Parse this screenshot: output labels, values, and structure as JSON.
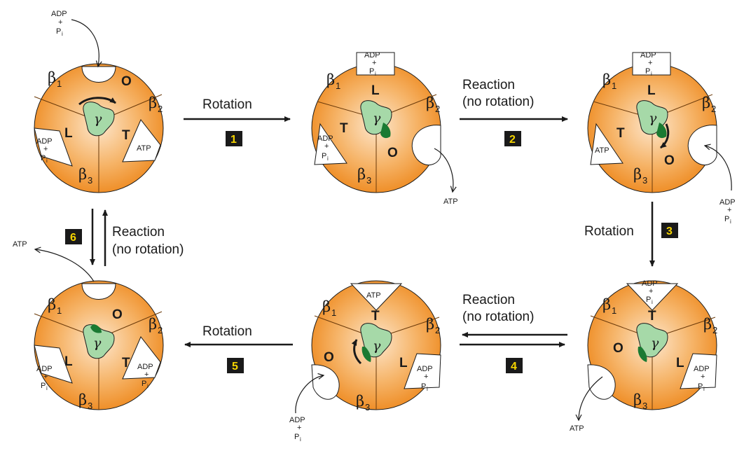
{
  "labels": {
    "rotation": "Rotation",
    "reaction": "Reaction",
    "no_rotation": "(no rotation)",
    "adp": "ADP",
    "plus": "+",
    "p": "P",
    "i": "i",
    "atp": "ATP",
    "beta": "β",
    "beta1_sub": "1",
    "beta2_sub": "2",
    "beta3_sub": "3",
    "gamma": "γ",
    "O": "O",
    "L": "L",
    "T": "T"
  },
  "steps": [
    "1",
    "2",
    "3",
    "4",
    "5",
    "6"
  ],
  "colors": {
    "orange": "#f0902a",
    "orange_light": "#fde6cc",
    "gamma_light": "#a6d9a8",
    "gamma_dark": "#1a7a32",
    "step_box": "#1a1a1a",
    "step_text": "#f5d400"
  }
}
